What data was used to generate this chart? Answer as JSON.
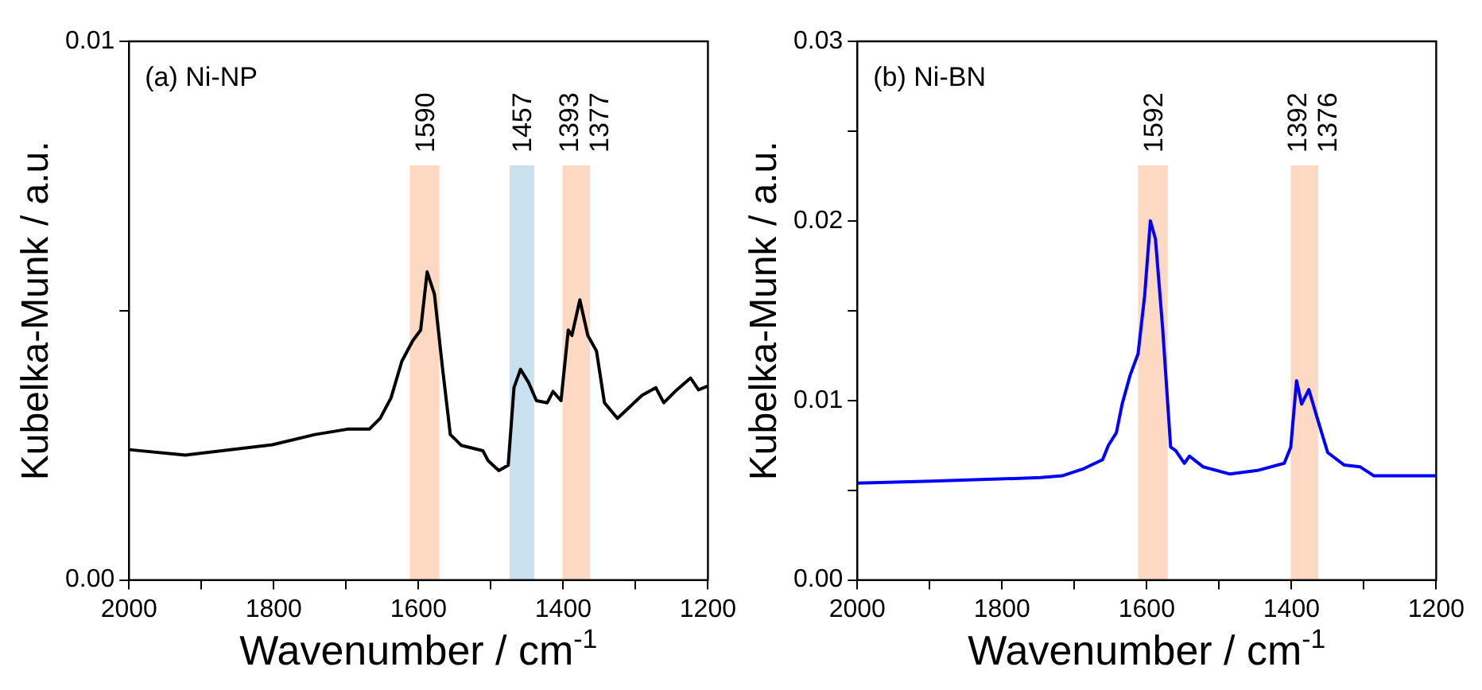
{
  "chart_data": [
    {
      "type": "line",
      "xlabel": "Wavenumber / cm$^{-1}$",
      "ylabel": "Kubelka-Munk / a.u.",
      "xlim": [
        2000,
        1200
      ],
      "ylim": [
        0,
        0.01
      ],
      "xticks": [
        2000,
        {
          "value": 1900,
          "label": null
        },
        1800,
        {
          "value": 1700,
          "label": null
        },
        1600,
        {
          "value": 1500,
          "label": null
        },
        1400,
        {
          "value": 1300,
          "label": null
        },
        1200
      ],
      "yticks": [
        {
          "value": 0,
          "label": "0.00"
        },
        {
          "value": 0.005,
          "label": null
        },
        {
          "value": 0.01,
          "label": "0.01"
        }
      ],
      "series": [
        {
          "color": "#000000",
          "x": [
            2000,
            1922,
            1802,
            1743,
            1698,
            1668,
            1653,
            1638,
            1623,
            1608,
            1597,
            1588,
            1578,
            1567,
            1556,
            1541,
            1511,
            1504,
            1489,
            1476,
            1468,
            1459,
            1448,
            1437,
            1422,
            1414,
            1403,
            1393,
            1388,
            1377,
            1366,
            1354,
            1343,
            1325,
            1310,
            1291,
            1272,
            1261,
            1243,
            1224,
            1213,
            1200
          ],
          "values": [
            0.00242,
            0.00232,
            0.00251,
            0.0027,
            0.0028,
            0.0028,
            0.003,
            0.00338,
            0.00406,
            0.00444,
            0.00464,
            0.00572,
            0.00531,
            0.00396,
            0.0027,
            0.0025,
            0.0024,
            0.00222,
            0.00203,
            0.00213,
            0.00357,
            0.00391,
            0.00367,
            0.00333,
            0.00329,
            0.0035,
            0.00333,
            0.00464,
            0.00454,
            0.0052,
            0.00454,
            0.00425,
            0.00329,
            0.003,
            0.00319,
            0.00343,
            0.00357,
            0.00329,
            0.00353,
            0.00375,
            0.00353,
            0.0036
          ]
        }
      ],
      "bands": [
        {
          "axis": "x",
          "from": 1612,
          "to": 1571,
          "color": "#fdd9c4",
          "label": "1590"
        },
        {
          "axis": "x",
          "from": 1474,
          "to": 1440,
          "color": "#c9e1ee",
          "label": "1457"
        },
        {
          "axis": "x",
          "from": 1401,
          "to": 1384,
          "color": "#fdd9c4",
          "label": "1393"
        },
        {
          "axis": "x",
          "from": 1384,
          "to": 1363,
          "color": "#fdd9c4",
          "label": "1377"
        }
      ],
      "annotations": [
        "(a) Ni-NP"
      ]
    },
    {
      "type": "line",
      "xlabel": "Wavenumber / cm$^{-1}$",
      "ylabel": "Kubelka-Munk / a.u.",
      "xlim": [
        2000,
        1200
      ],
      "ylim": [
        0,
        0.03
      ],
      "xticks": [
        2000,
        {
          "value": 1900,
          "label": null
        },
        1800,
        {
          "value": 1700,
          "label": null
        },
        1600,
        {
          "value": 1500,
          "label": null
        },
        1400,
        {
          "value": 1300,
          "label": null
        },
        1200
      ],
      "yticks": [
        {
          "value": 0,
          "label": "0.00"
        },
        {
          "value": 0.005,
          "label": null
        },
        {
          "value": 0.01,
          "label": "0.01"
        },
        {
          "value": 0.015,
          "label": null
        },
        {
          "value": 0.02,
          "label": "0.02"
        },
        {
          "value": 0.025,
          "label": null
        },
        {
          "value": 0.03,
          "label": "0.03"
        }
      ],
      "series": [
        {
          "color": "#0000ff",
          "x": [
            2000,
            1897,
            1822,
            1747,
            1717,
            1687,
            1661,
            1653,
            1642,
            1634,
            1623,
            1612,
            1603,
            1595,
            1588,
            1578,
            1567,
            1560,
            1548,
            1541,
            1522,
            1485,
            1447,
            1410,
            1401,
            1393,
            1386,
            1376,
            1365,
            1350,
            1327,
            1305,
            1286,
            1237,
            1200
          ],
          "values": [
            0.0054,
            0.0055,
            0.0056,
            0.0057,
            0.0058,
            0.0062,
            0.0067,
            0.0075,
            0.0082,
            0.0098,
            0.0114,
            0.0126,
            0.0158,
            0.02,
            0.019,
            0.014,
            0.0074,
            0.0072,
            0.0065,
            0.0069,
            0.0063,
            0.0059,
            0.0061,
            0.0065,
            0.0074,
            0.0111,
            0.0098,
            0.0106,
            0.0091,
            0.0071,
            0.0064,
            0.0063,
            0.0058,
            0.0058,
            0.0058
          ]
        }
      ],
      "bands": [
        {
          "axis": "x",
          "from": 1612,
          "to": 1571,
          "color": "#fdd9c4",
          "label": "1592"
        },
        {
          "axis": "x",
          "from": 1401,
          "to": 1384,
          "color": "#fdd9c4",
          "label": "1392"
        },
        {
          "axis": "x",
          "from": 1384,
          "to": 1363,
          "color": "#fdd9c4",
          "label": "1376"
        }
      ],
      "annotations": [
        "(b) Ni-BN"
      ]
    }
  ]
}
